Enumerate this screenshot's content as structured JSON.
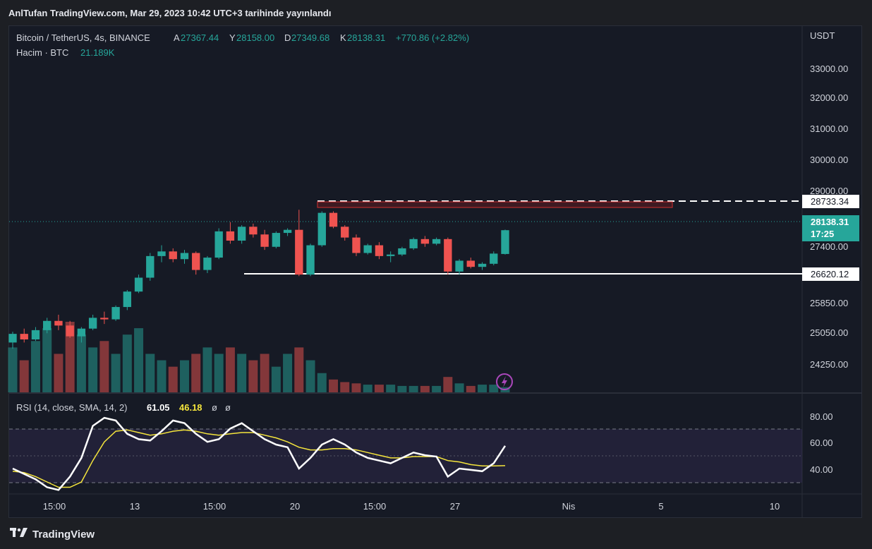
{
  "header": {
    "publish_line": "AnlTufan TradingView.com, Mar 29, 2023 10:42 UTC+3 tarihinde yayınlandı"
  },
  "legend": {
    "symbol": "Bitcoin / TetherUS, 4s, BINANCE",
    "open_label": "A",
    "open_value": "27367.44",
    "high_label": "Y",
    "high_value": "28158.00",
    "low_label": "D",
    "low_value": "27349.68",
    "close_label": "K",
    "close_value": "28138.31",
    "change": "+770.86 (+2.82%)",
    "volume_label": "Hacim · BTC",
    "volume_value": "21.189K"
  },
  "price_axis": {
    "currency": "USDT",
    "ticks": [
      "33000.00",
      "32000.00",
      "31000.00",
      "30000.00",
      "29000.00",
      "27400.00",
      "25850.00",
      "25050.00",
      "24250.00"
    ]
  },
  "price_labels": {
    "resistance": "28733.34",
    "last_price": "28138.31",
    "countdown": "17:25",
    "support": "26620.12"
  },
  "rsi": {
    "label": "RSI (14, close, SMA, 14, 2)",
    "value": "61.05",
    "sma_value": "46.18",
    "extra1": "ø",
    "extra2": "ø",
    "ticks": [
      "80.00",
      "60.00",
      "40.00"
    ]
  },
  "time_axis": {
    "ticks": [
      "15:00",
      "13",
      "15:00",
      "20",
      "15:00",
      "27",
      "Nis",
      "5",
      "10"
    ]
  },
  "footer": {
    "brand": "TradingView"
  },
  "colors": {
    "up": "#26a69a",
    "down": "#ef5350",
    "rsi_line": "#ffffff",
    "rsi_sma": "#f5e53c",
    "rsi_band": "#7e57c2",
    "resistance_box": "#b71c1c"
  },
  "chart_data": {
    "type": "candlestick",
    "symbol": "Bitcoin / TetherUS",
    "interval": "4s",
    "exchange": "BINANCE",
    "resistance_level": 28733.34,
    "support_level": 26620.12,
    "last_price": 28138.31,
    "candles": [
      [
        24500,
        24850,
        24300,
        24780
      ],
      [
        24780,
        24950,
        24500,
        24600
      ],
      [
        24600,
        25000,
        24550,
        24900
      ],
      [
        24900,
        25300,
        24800,
        25200
      ],
      [
        25200,
        25400,
        24900,
        25050
      ],
      [
        25050,
        25200,
        24650,
        24700
      ],
      [
        24700,
        25000,
        24500,
        24950
      ],
      [
        24950,
        25400,
        24900,
        25300
      ],
      [
        25300,
        25500,
        25100,
        25250
      ],
      [
        25250,
        25700,
        25200,
        25650
      ],
      [
        25650,
        26200,
        25550,
        26150
      ],
      [
        26150,
        26700,
        26100,
        26600
      ],
      [
        26600,
        27400,
        26500,
        27300
      ],
      [
        27300,
        27650,
        27100,
        27450
      ],
      [
        27450,
        27550,
        27100,
        27200
      ],
      [
        27200,
        27500,
        27050,
        27400
      ],
      [
        27400,
        27450,
        26700,
        26850
      ],
      [
        26850,
        27300,
        26750,
        27250
      ],
      [
        27250,
        28200,
        27200,
        28100
      ],
      [
        28100,
        28400,
        27700,
        27800
      ],
      [
        27800,
        28300,
        27700,
        28250
      ],
      [
        28250,
        28350,
        27900,
        28000
      ],
      [
        28000,
        28150,
        27500,
        27600
      ],
      [
        27600,
        28100,
        27550,
        28050
      ],
      [
        28050,
        28200,
        27950,
        28150
      ],
      [
        28150,
        28800,
        26650,
        26700
      ],
      [
        26700,
        27700,
        26650,
        27650
      ],
      [
        27650,
        28750,
        27600,
        28700
      ],
      [
        28700,
        28750,
        28200,
        28250
      ],
      [
        28250,
        28300,
        27800,
        27900
      ],
      [
        27900,
        28000,
        27300,
        27400
      ],
      [
        27400,
        27700,
        27350,
        27650
      ],
      [
        27650,
        27750,
        27200,
        27300
      ],
      [
        27300,
        27450,
        27100,
        27350
      ],
      [
        27350,
        27600,
        27300,
        27550
      ],
      [
        27550,
        27900,
        27500,
        27850
      ],
      [
        27850,
        27950,
        27600,
        27700
      ],
      [
        27700,
        27900,
        27650,
        27850
      ],
      [
        27850,
        27900,
        26700,
        26800
      ],
      [
        26800,
        27200,
        26700,
        27150
      ],
      [
        27150,
        27250,
        26900,
        26950
      ],
      [
        26950,
        27100,
        26850,
        27050
      ],
      [
        27050,
        27450,
        27000,
        27380
      ],
      [
        27367.44,
        28158.0,
        27349.68,
        28138.31
      ]
    ],
    "volume_values": [
      3.5,
      2.5,
      4.0,
      5.0,
      3.0,
      5.5,
      4.5,
      3.5,
      4.0,
      3.0,
      4.5,
      5.0,
      3.0,
      2.5,
      2.0,
      2.5,
      3.0,
      3.5,
      3.0,
      3.5,
      3.0,
      2.5,
      3.0,
      2.0,
      3.0,
      3.5,
      2.5,
      1.5,
      1.0,
      0.8,
      0.7,
      0.6,
      0.6,
      0.6,
      0.5,
      0.5,
      0.5,
      0.5,
      1.2,
      0.7,
      0.5,
      0.6,
      0.6,
      0.4
    ],
    "rsi_values": [
      44,
      40,
      36,
      30,
      28,
      38,
      52,
      76,
      82,
      80,
      70,
      66,
      65,
      72,
      80,
      78,
      70,
      64,
      66,
      74,
      78,
      72,
      66,
      62,
      60,
      44,
      52,
      62,
      66,
      62,
      56,
      52,
      50,
      48,
      52,
      56,
      54,
      53,
      38,
      44,
      43,
      42,
      48,
      61.05
    ],
    "rsi_sma_values": [
      42,
      41,
      38,
      34,
      30,
      30,
      34,
      50,
      64,
      72,
      73,
      71,
      69,
      70,
      72,
      73,
      72,
      70,
      69,
      70,
      71,
      71,
      69,
      67,
      64,
      60,
      58,
      58,
      59,
      59,
      58,
      56,
      54,
      52,
      52,
      53,
      53,
      53,
      50,
      49,
      47,
      46,
      46,
      46.18
    ],
    "rsi_ylim": [
      25,
      90
    ],
    "price_ylim": [
      23800,
      33400
    ],
    "x_ticks": [
      "15:00",
      "13",
      "15:00",
      "20",
      "15:00",
      "27",
      "Nis",
      "5",
      "10"
    ]
  }
}
